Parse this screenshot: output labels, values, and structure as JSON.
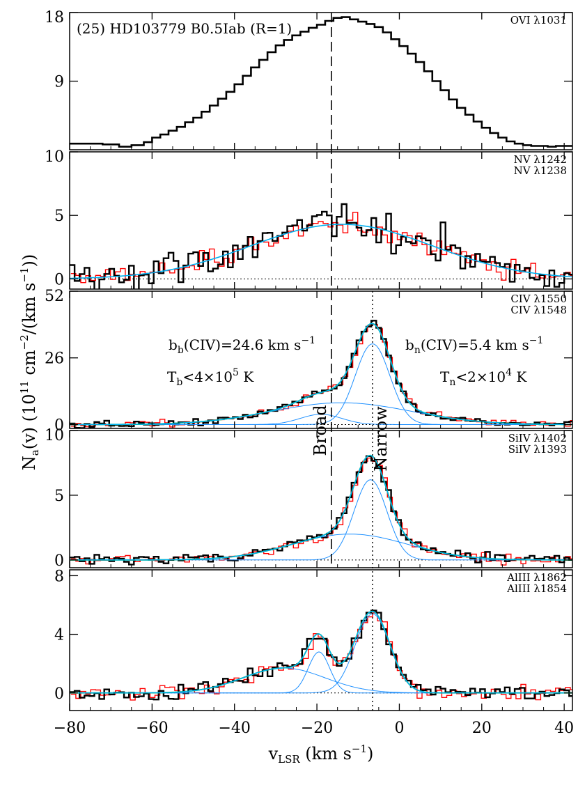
{
  "chart_data": {
    "type": "line",
    "title": "(25) HD103779 B0.5Iab (R=1)",
    "xlabel": "v",
    "xlabel_sub": "LSR",
    "xlabel_unit": " (km s",
    "xlabel_unit_sup": "−1",
    "xlabel_close": ")",
    "ylabel": "N",
    "ylabel_sub": "a",
    "ylabel_rest": "(v)  (10",
    "ylabel_sup1": "11",
    "ylabel_mid": " cm",
    "ylabel_sup2": "−2",
    "ylabel_mid2": "/(km s",
    "ylabel_sup3": "−1",
    "ylabel_close": "))",
    "xlim": [
      -80,
      42
    ],
    "xticks": [
      -80,
      -60,
      -40,
      -20,
      0,
      20,
      40
    ],
    "xtick_labels": [
      "−80",
      "−60",
      "−40",
      "−20",
      "0",
      "20",
      "40"
    ],
    "broad_velocity": -16.5,
    "narrow_velocity": -6.5,
    "broad_label": "Broad",
    "narrow_label": "Narrow",
    "colors": {
      "primary": "#000000",
      "secondary": "#ff0000",
      "fit": "#00b0f0",
      "total_fit": "#00c000",
      "component": "#1e90ff"
    },
    "panels": [
      {
        "id": "ovi",
        "ylim": [
          0,
          18
        ],
        "yticks": [
          9,
          18
        ],
        "ytick_labels": [
          "9",
          "18"
        ],
        "line1": "OVI λ1031",
        "line2": "",
        "smooth": 0,
        "noise": 0,
        "zero_line": false,
        "comps": [
          {
            "a": 16.5,
            "c": -14,
            "s": 20
          }
        ],
        "series1": [
          [
            -80,
            0.8
          ],
          [
            -76,
            0.8
          ],
          [
            -72,
            0.7
          ],
          [
            -68,
            0.4
          ],
          [
            -65,
            0.6
          ],
          [
            -62,
            1.0
          ],
          [
            -60,
            1.6
          ],
          [
            -58,
            2.0
          ],
          [
            -56,
            2.5
          ],
          [
            -54,
            3.0
          ],
          [
            -52,
            3.6
          ],
          [
            -50,
            4.2
          ],
          [
            -48,
            5.0
          ],
          [
            -46,
            5.8
          ],
          [
            -44,
            6.7
          ],
          [
            -42,
            7.6
          ],
          [
            -40,
            8.6
          ],
          [
            -38,
            9.7
          ],
          [
            -36,
            10.8
          ],
          [
            -34,
            11.8
          ],
          [
            -32,
            12.8
          ],
          [
            -30,
            13.7
          ],
          [
            -28,
            14.4
          ],
          [
            -26,
            15.0
          ],
          [
            -24,
            15.5
          ],
          [
            -22,
            16.0
          ],
          [
            -20,
            16.4
          ],
          [
            -18,
            16.9
          ],
          [
            -16,
            17.3
          ],
          [
            -14,
            17.4
          ],
          [
            -12,
            17.1
          ],
          [
            -10,
            16.8
          ],
          [
            -8,
            16.5
          ],
          [
            -6,
            16.1
          ],
          [
            -4,
            15.4
          ],
          [
            -2,
            14.5
          ],
          [
            0,
            13.6
          ],
          [
            2,
            12.6
          ],
          [
            4,
            11.5
          ],
          [
            6,
            10.3
          ],
          [
            8,
            9.0
          ],
          [
            10,
            7.8
          ],
          [
            12,
            6.6
          ],
          [
            14,
            5.5
          ],
          [
            16,
            4.6
          ],
          [
            18,
            3.7
          ],
          [
            20,
            2.9
          ],
          [
            22,
            2.2
          ],
          [
            24,
            1.6
          ],
          [
            26,
            1.1
          ],
          [
            28,
            0.8
          ],
          [
            30,
            0.6
          ],
          [
            32,
            0.5
          ],
          [
            34,
            0.5
          ],
          [
            36,
            0.4
          ],
          [
            38,
            0.5
          ],
          [
            40,
            0.5
          ]
        ]
      },
      {
        "id": "nv",
        "ylim": [
          -0.8,
          10
        ],
        "yticks": [
          0,
          5,
          10
        ],
        "ytick_labels": [
          "0",
          "5",
          "10"
        ],
        "line1": "NV λ1242",
        "line2": "NV λ1238",
        "smooth": 4.3,
        "noise": 1.1,
        "noise2": 0.55,
        "zero_line": true,
        "comps": [
          {
            "a": 4.3,
            "c": -14,
            "s": 22
          }
        ],
        "fit_components": false
      },
      {
        "id": "civ",
        "ylim": [
          -1.5,
          52
        ],
        "yticks": [
          0,
          26,
          52
        ],
        "ytick_labels": [
          "0",
          "26",
          "52"
        ],
        "line1": "CIV λ1550",
        "line2": "CIV λ1548",
        "smooth": 1,
        "noise": 1.0,
        "noise2": 0.9,
        "zero_line": true,
        "comps": [
          {
            "a": 8.5,
            "c": -14,
            "s": 17
          },
          {
            "a": 31.5,
            "c": -6.5,
            "s": 4.2
          },
          {
            "a": 4.0,
            "c": -19,
            "s": 5
          }
        ],
        "fit_components": true,
        "annot_left1": "b",
        "annot_left1_sub": "b",
        "annot_left1_rest": "(CIV)=24.6 km s",
        "annot_left1_sup": "−1",
        "annot_left2": "T",
        "annot_left2_sub": "b",
        "annot_left2_rest": "<4×10",
        "annot_left2_sup": "5",
        "annot_left2_end": " K",
        "annot_right1": "b",
        "annot_right1_sub": "n",
        "annot_right1_rest": "(CIV)=5.4 km s",
        "annot_right1_sup": "−1",
        "annot_right2": "T",
        "annot_right2_sub": "n",
        "annot_right2_rest": "<2×10",
        "annot_right2_sup": "4",
        "annot_right2_end": " K"
      },
      {
        "id": "siiv",
        "ylim": [
          -0.6,
          10
        ],
        "yticks": [
          0,
          5,
          10
        ],
        "ytick_labels": [
          "0",
          "5",
          "10"
        ],
        "line1": "SiIV λ1402",
        "line2": "SiIV λ1393",
        "smooth": 1,
        "noise": 0.28,
        "noise2": 0.25,
        "zero_line": true,
        "comps": [
          {
            "a": 2.0,
            "c": -12,
            "s": 14
          },
          {
            "a": 6.2,
            "c": -7,
            "s": 4.0
          }
        ],
        "fit_components": true
      },
      {
        "id": "aliii",
        "ylim": [
          -1.2,
          8.4
        ],
        "yticks": [
          0,
          4,
          8
        ],
        "ytick_labels": [
          "0",
          "4",
          "8"
        ],
        "line1": "AlIII λ1862",
        "line2": "AlIII λ1854",
        "smooth": 1,
        "noise": 0.35,
        "noise2": 0.32,
        "zero_line": true,
        "comps": [
          {
            "a": 1.7,
            "c": -28,
            "s": 10
          },
          {
            "a": 2.8,
            "c": -19.5,
            "s": 2.6
          },
          {
            "a": 5.4,
            "c": -6.5,
            "s": 4.2
          }
        ],
        "fit_components": true
      }
    ]
  }
}
